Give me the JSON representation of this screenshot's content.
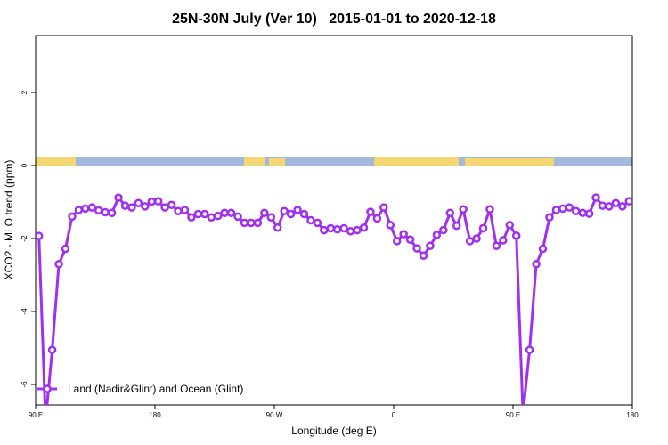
{
  "chart_data": {
    "type": "line",
    "title": "25N-30N July (Ver 10)   2015-01-01 to 2020-12-18",
    "x_label": "Longitude (deg E)",
    "y_label": "XCO2 - MLO trend (ppm)",
    "x": [
      92.5,
      97.5,
      102.5,
      107.5,
      112.5,
      117.5,
      122.5,
      127.5,
      132.5,
      137.5,
      142.5,
      147.5,
      152.5,
      157.5,
      162.5,
      167.5,
      172.5,
      177.5,
      182.5,
      187.5,
      192.5,
      197.5,
      202.5,
      207.5,
      212.5,
      217.5,
      222.5,
      227.5,
      232.5,
      237.5,
      242.5,
      247.5,
      252.5,
      257.5,
      262.5,
      267.5,
      272.5,
      277.5,
      282.5,
      287.5,
      292.5,
      297.5,
      302.5,
      307.5,
      312.5,
      317.5,
      322.5,
      327.5,
      332.5,
      337.5,
      342.5,
      347.5,
      352.5,
      357.5,
      362.5,
      367.5,
      372.5,
      377.5,
      382.5,
      387.5,
      392.5,
      397.5,
      402.5,
      407.5,
      412.5,
      417.5,
      422.5,
      427.5,
      432.5,
      437.5,
      442.5,
      447.5,
      452.5,
      457.5,
      462.5,
      467.5,
      472.5,
      477.5,
      482.5,
      487.5,
      492.5,
      497.5,
      502.5,
      507.5,
      512.5,
      517.5,
      522.5,
      527.5,
      532.5,
      537.5
    ],
    "series": [
      {
        "name": "Land (Nadir&Glint) and Ocean (Glint)",
        "color": "#a030f0",
        "values": [
          -1.93,
          -7.0,
          -5.05,
          -2.7,
          -2.28,
          -1.4,
          -1.22,
          -1.18,
          -1.15,
          -1.23,
          -1.28,
          -1.3,
          -0.88,
          -1.1,
          -1.15,
          -1.03,
          -1.12,
          -0.99,
          -0.98,
          -1.15,
          -1.08,
          -1.25,
          -1.22,
          -1.42,
          -1.33,
          -1.33,
          -1.42,
          -1.38,
          -1.3,
          -1.3,
          -1.4,
          -1.57,
          -1.57,
          -1.57,
          -1.3,
          -1.42,
          -1.7,
          -1.25,
          -1.33,
          -1.22,
          -1.33,
          -1.5,
          -1.57,
          -1.77,
          -1.72,
          -1.75,
          -1.72,
          -1.8,
          -1.77,
          -1.7,
          -1.27,
          -1.45,
          -1.15,
          -1.63,
          -2.07,
          -1.88,
          -2.03,
          -2.27,
          -2.47,
          -2.2,
          -1.9,
          -1.77,
          -1.3,
          -1.65,
          -1.2,
          -2.07,
          -2.0,
          -1.72,
          -1.2,
          -2.2,
          -2.05,
          -1.63,
          -1.92,
          -6.8,
          -5.05,
          -2.7,
          -2.28,
          -1.42,
          -1.22,
          -1.18,
          -1.15,
          -1.25,
          -1.3,
          -1.32,
          -0.88,
          -1.1,
          -1.12,
          -1.03,
          -1.12,
          -0.98
        ]
      }
    ],
    "xlim": [
      90,
      540
    ],
    "xticks": [
      {
        "value": 90,
        "label": "90 E"
      },
      180,
      {
        "value": 270,
        "label": "90 W"
      },
      {
        "value": 360,
        "label": "0"
      },
      {
        "value": 450,
        "label": "90 E"
      },
      {
        "value": 540,
        "label": "180"
      }
    ],
    "ylim": [
      -6.56,
      3.56
    ],
    "yticks": [
      -6,
      -4,
      -2,
      0,
      2
    ],
    "legend": "lower left"
  }
}
